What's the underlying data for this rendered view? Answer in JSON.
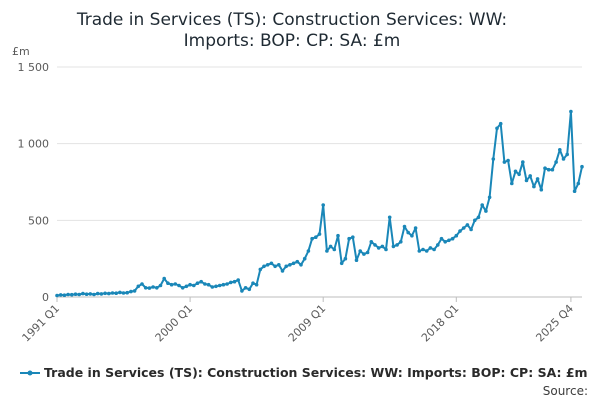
{
  "chart_data": {
    "type": "line",
    "title_lines": [
      "Trade in Services (TS): Construction Services: WW:",
      "Imports: BOP: CP: SA: £m"
    ],
    "unit_label": "£m",
    "x_tick_labels": [
      "1991 Q1",
      "2000 Q1",
      "2009 Q1",
      "2018 Q1",
      "2025 Q4"
    ],
    "x_tick_indices": [
      0,
      36,
      72,
      108,
      139
    ],
    "y_ticks": [
      0,
      500,
      1000,
      1500
    ],
    "y_tick_labels": [
      "0",
      "500",
      "1 000",
      "1 500"
    ],
    "ylim": [
      0,
      1500
    ],
    "grid": true,
    "legend_position": "bottom",
    "source_label": "Source:",
    "series": [
      {
        "name": "Trade in Services (TS): Construction Services: WW: Imports: BOP: CP: SA: £m",
        "color": "#1a87b8",
        "values": [
          10,
          14,
          12,
          16,
          15,
          18,
          16,
          22,
          18,
          20,
          16,
          22,
          20,
          24,
          22,
          26,
          25,
          30,
          26,
          28,
          35,
          40,
          70,
          85,
          60,
          58,
          65,
          60,
          75,
          120,
          90,
          80,
          85,
          75,
          60,
          70,
          80,
          75,
          90,
          100,
          85,
          80,
          65,
          70,
          75,
          80,
          85,
          95,
          100,
          110,
          40,
          60,
          50,
          90,
          80,
          180,
          200,
          210,
          220,
          200,
          210,
          170,
          200,
          210,
          220,
          230,
          210,
          250,
          300,
          380,
          390,
          410,
          600,
          300,
          330,
          310,
          400,
          220,
          250,
          380,
          390,
          240,
          300,
          280,
          290,
          360,
          340,
          320,
          330,
          310,
          520,
          330,
          340,
          360,
          460,
          420,
          400,
          450,
          300,
          310,
          300,
          320,
          310,
          340,
          380,
          360,
          370,
          380,
          400,
          430,
          450,
          470,
          440,
          500,
          520,
          600,
          560,
          650,
          900,
          1100,
          1130,
          880,
          890,
          740,
          820,
          800,
          880,
          760,
          790,
          720,
          770,
          700,
          840,
          830,
          830,
          880,
          960,
          900,
          930,
          1210,
          690,
          740,
          850
        ]
      }
    ]
  }
}
